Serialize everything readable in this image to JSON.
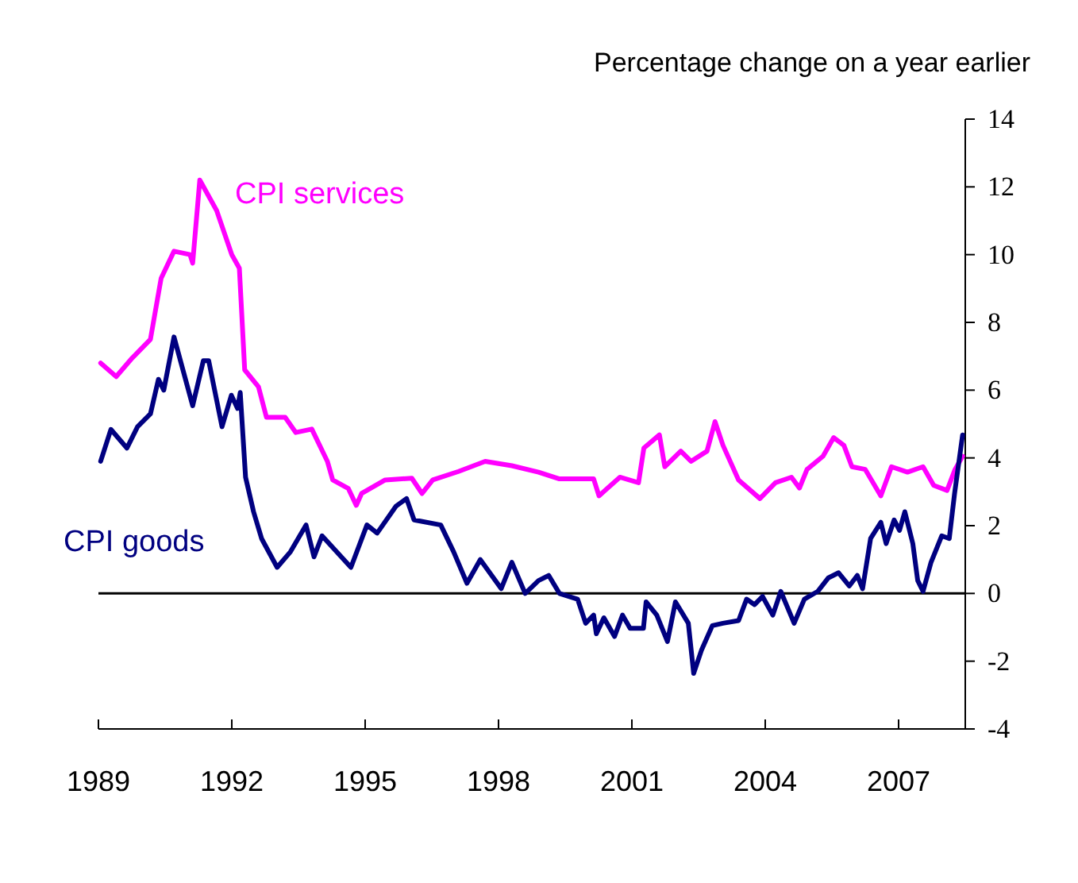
{
  "chart_data": {
    "type": "line",
    "ylabel": "Percentage change on a year earlier",
    "xlim": [
      1989,
      2008.5
    ],
    "xticks": [
      1989,
      1992,
      1995,
      1998,
      2001,
      2004,
      2007
    ],
    "ylim": [
      -4,
      14
    ],
    "yticks": [
      -4,
      -2,
      0,
      2,
      4,
      6,
      8,
      10,
      12,
      14
    ],
    "grid": false,
    "line_style": "solid",
    "ref_lines": [
      {
        "axis": "y",
        "value": 0,
        "color": "#000000"
      }
    ],
    "series": [
      {
        "name": "CPI services",
        "color": "#ff00ff",
        "x": [
          1989.05,
          1989.4,
          1989.76,
          1990.17,
          1990.41,
          1990.7,
          1991.06,
          1991.12,
          1991.28,
          1991.66,
          1992.0,
          1992.17,
          1992.29,
          1992.6,
          1992.78,
          1993.2,
          1993.44,
          1993.8,
          1994.15,
          1994.27,
          1994.62,
          1994.8,
          1994.92,
          1995.45,
          1996.05,
          1996.28,
          1996.52,
          1997.1,
          1997.7,
          1998.3,
          1998.9,
          1999.37,
          2000.14,
          2000.26,
          2000.73,
          2001.15,
          2001.27,
          2001.62,
          2001.74,
          2002.1,
          2002.33,
          2002.69,
          2002.87,
          2003.05,
          2003.4,
          2003.88,
          2004.23,
          2004.59,
          2004.77,
          2004.94,
          2005.3,
          2005.54,
          2005.77,
          2005.95,
          2006.25,
          2006.6,
          2006.84,
          2007.2,
          2007.55,
          2007.79,
          2008.09,
          2008.27,
          2008.44
        ],
        "values": [
          6.8,
          6.4,
          6.95,
          7.5,
          9.3,
          10.1,
          10.0,
          9.75,
          12.2,
          11.3,
          10.0,
          9.6,
          6.6,
          6.1,
          5.2,
          5.2,
          4.75,
          4.85,
          3.9,
          3.35,
          3.1,
          2.6,
          2.95,
          3.35,
          3.4,
          2.95,
          3.35,
          3.6,
          3.9,
          3.77,
          3.58,
          3.38,
          3.38,
          2.88,
          3.43,
          3.27,
          4.29,
          4.68,
          3.74,
          4.2,
          3.9,
          4.2,
          5.07,
          4.37,
          3.35,
          2.8,
          3.27,
          3.43,
          3.11,
          3.66,
          4.05,
          4.6,
          4.37,
          3.74,
          3.66,
          2.88,
          3.74,
          3.58,
          3.74,
          3.19,
          3.04,
          3.66,
          4.05
        ]
      },
      {
        "name": "CPI goods",
        "color": "#000080",
        "x": [
          1989.05,
          1989.28,
          1989.64,
          1989.88,
          1990.17,
          1990.35,
          1990.47,
          1990.7,
          1991.12,
          1991.36,
          1991.48,
          1991.78,
          1991.99,
          1992.13,
          1992.19,
          1992.31,
          1992.49,
          1992.67,
          1993.02,
          1993.32,
          1993.67,
          1993.85,
          1994.03,
          1994.68,
          1995.04,
          1995.27,
          1995.69,
          1995.93,
          1996.1,
          1996.7,
          1996.99,
          1997.29,
          1997.59,
          1998.06,
          1998.3,
          1998.6,
          1998.9,
          1999.13,
          1999.37,
          1999.78,
          1999.96,
          2000.14,
          2000.2,
          2000.37,
          2000.61,
          2000.79,
          2000.96,
          2001.26,
          2001.32,
          2001.56,
          2001.8,
          2001.98,
          2002.27,
          2002.39,
          2002.57,
          2002.81,
          2003.05,
          2003.4,
          2003.58,
          2003.76,
          2003.94,
          2004.17,
          2004.35,
          2004.65,
          2004.88,
          2005.18,
          2005.42,
          2005.65,
          2005.89,
          2006.07,
          2006.19,
          2006.37,
          2006.6,
          2006.72,
          2006.9,
          2007.02,
          2007.14,
          2007.32,
          2007.43,
          2007.55,
          2007.73,
          2007.97,
          2008.14,
          2008.26,
          2008.44
        ],
        "values": [
          3.9,
          4.84,
          4.29,
          4.92,
          5.3,
          6.32,
          6.0,
          7.57,
          5.54,
          6.87,
          6.87,
          4.92,
          5.85,
          5.46,
          5.93,
          3.43,
          2.41,
          1.62,
          0.77,
          1.23,
          2.02,
          1.08,
          1.7,
          0.77,
          2.02,
          1.78,
          2.57,
          2.8,
          2.17,
          2.02,
          1.23,
          0.3,
          1.0,
          0.14,
          0.92,
          0.0,
          0.38,
          0.53,
          0.0,
          -0.17,
          -0.88,
          -0.64,
          -1.19,
          -0.72,
          -1.27,
          -0.64,
          -1.03,
          -1.03,
          -0.25,
          -0.64,
          -1.42,
          -0.25,
          -0.88,
          -2.36,
          -1.66,
          -0.95,
          -0.88,
          -0.8,
          -0.17,
          -0.33,
          -0.09,
          -0.64,
          0.06,
          -0.88,
          -0.17,
          0.06,
          0.46,
          0.61,
          0.22,
          0.53,
          0.14,
          1.62,
          2.1,
          1.47,
          2.17,
          1.86,
          2.41,
          1.47,
          0.38,
          0.06,
          0.92,
          1.7,
          1.62,
          2.96,
          4.68
        ]
      }
    ]
  }
}
